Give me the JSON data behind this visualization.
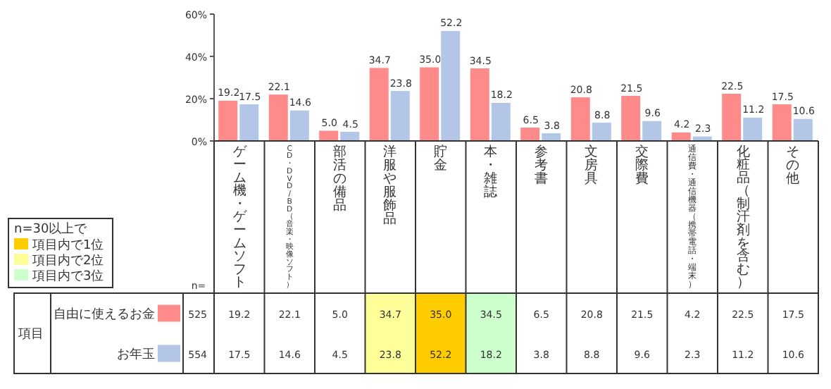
{
  "chart_data": {
    "type": "bar",
    "categories": [
      "ゲーム機・ゲームソフト",
      "CD・DVD/BD（音楽・映像ソフト）",
      "部活の備品",
      "洋服や服飾品",
      "貯金",
      "本・雑誌",
      "参考書",
      "文房具",
      "交際費",
      "通信費・通信機器（携帯電話・端末）",
      "化粧品（制汗剤を含む）",
      "その他"
    ],
    "series": [
      {
        "name": "自由に使えるお金",
        "color": "#ff8a8a",
        "values": [
          19.2,
          22.1,
          5.0,
          34.7,
          35.0,
          34.5,
          6.5,
          20.8,
          21.5,
          4.2,
          22.5,
          17.5
        ],
        "value_labels": [
          "19.2",
          "22.1",
          "5.0",
          "34.7",
          "35.0",
          "34.5",
          "6.5",
          "20.8",
          "21.5",
          "4.2",
          "22.5",
          "17.5"
        ]
      },
      {
        "name": "お年玉",
        "color": "#b4c6e7",
        "values": [
          17.5,
          14.6,
          4.5,
          23.8,
          52.2,
          18.2,
          3.8,
          8.8,
          9.6,
          2.3,
          11.2,
          10.6
        ],
        "value_labels": [
          "17.5",
          "14.6",
          "4.5",
          "23.8",
          "52.2",
          "18.2",
          "3.8",
          "8.8",
          "9.6",
          "2.3",
          "11.2",
          "10.6"
        ]
      }
    ],
    "ylim": [
      0,
      60
    ],
    "yticks": [
      {
        "value": 0,
        "label": "0%"
      },
      {
        "value": 20,
        "label": "20%"
      },
      {
        "value": 40,
        "label": "40%"
      },
      {
        "value": 60,
        "label": "60%"
      }
    ],
    "legend": "bottom left",
    "annotations": [
      "項目",
      "n=",
      "525",
      "554",
      "n=30以上で",
      "項目内で1位",
      "項目内で2位",
      "項目内で3位"
    ]
  }
}
